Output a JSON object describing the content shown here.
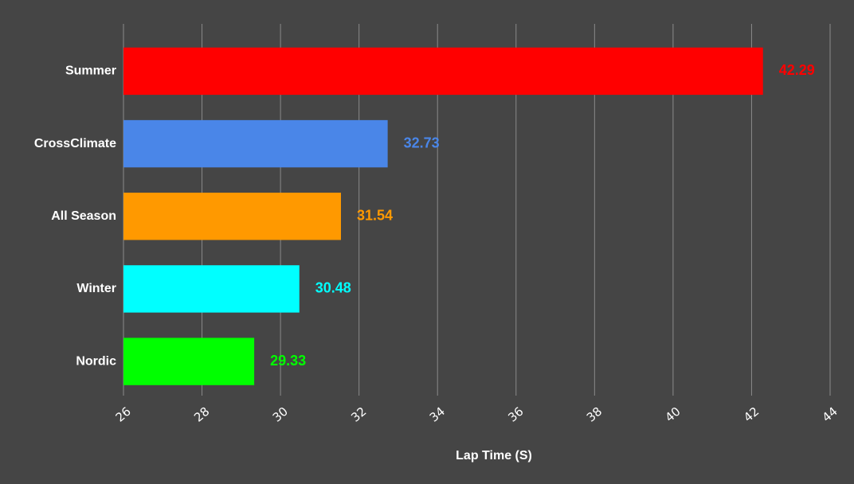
{
  "chart_data": {
    "type": "bar",
    "orientation": "horizontal",
    "categories": [
      "Summer",
      "CrossClimate",
      "All Season",
      "Winter",
      "Nordic"
    ],
    "values": [
      42.29,
      32.73,
      31.54,
      30.48,
      29.33
    ],
    "colors": [
      "#ff0000",
      "#4a86e8",
      "#ff9900",
      "#00ffff",
      "#00ff00"
    ],
    "value_labels": [
      "42.29",
      "32.73",
      "31.54",
      "30.48",
      "29.33"
    ],
    "xlabel": "Lap Time (S)",
    "ylabel": "",
    "xlim": [
      26,
      44
    ],
    "xticks": [
      26,
      28,
      30,
      32,
      34,
      36,
      38,
      40,
      42,
      44
    ],
    "grid": "vertical",
    "legend": "none",
    "background": "#454545"
  }
}
